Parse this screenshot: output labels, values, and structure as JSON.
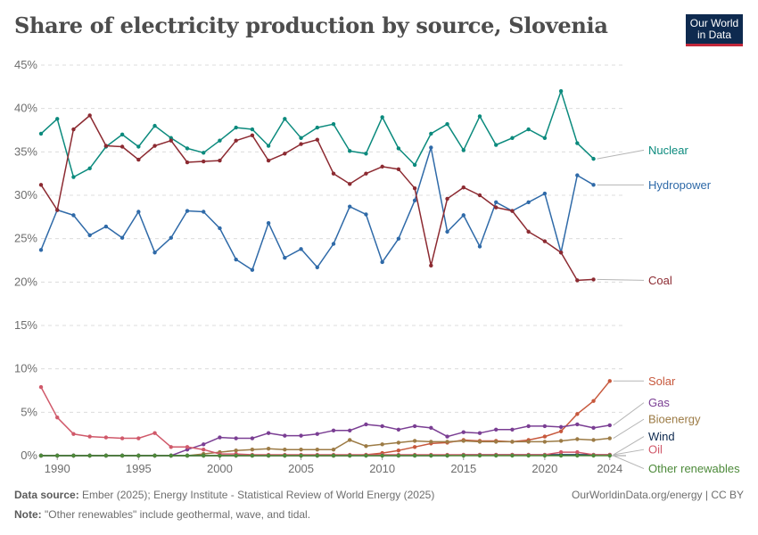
{
  "title": "Share of electricity production by source, Slovenia",
  "logo": {
    "line1": "Our World",
    "line2": "in Data"
  },
  "footer": {
    "source_label": "Data source:",
    "source_text": "Ember (2025); Energy Institute - Statistical Review of World Energy (2025)",
    "note_label": "Note:",
    "note_text": "\"Other renewables\" include geothermal, wave, and tidal.",
    "url": "OurWorldinData.org/energy | CC BY"
  },
  "chart_data": {
    "type": "line",
    "title": "Share of electricity production by source, Slovenia",
    "xlim": [
      1989,
      2025
    ],
    "ylim": [
      0,
      45
    ],
    "y_ticks": [
      0,
      5,
      10,
      15,
      20,
      25,
      30,
      35,
      40,
      45
    ],
    "y_tick_labels": [
      "0%",
      "5%",
      "10%",
      "15%",
      "20%",
      "25%",
      "30%",
      "35%",
      "40%",
      "45%"
    ],
    "x_ticks": [
      1990,
      1995,
      2000,
      2005,
      2010,
      2015,
      2020,
      2024
    ],
    "x_tick_labels": [
      "1990",
      "1995",
      "2000",
      "2005",
      "2010",
      "2015",
      "2020",
      "2024"
    ],
    "grid": "horizontal dashed",
    "legend": "right, labels at line ends",
    "x": [
      1989,
      1990,
      1991,
      1992,
      1993,
      1994,
      1995,
      1996,
      1997,
      1998,
      1999,
      2000,
      2001,
      2002,
      2003,
      2004,
      2005,
      2006,
      2007,
      2008,
      2009,
      2010,
      2011,
      2012,
      2013,
      2014,
      2015,
      2016,
      2017,
      2018,
      2019,
      2020,
      2021,
      2022,
      2023,
      2024
    ],
    "series": [
      {
        "name": "Nuclear",
        "color": "#0b8a7d",
        "label_y": 35.2,
        "values": [
          37.1,
          38.8,
          32.1,
          33.1,
          35.6,
          37.0,
          35.6,
          38.0,
          36.6,
          35.4,
          34.9,
          36.3,
          37.8,
          37.6,
          35.7,
          38.8,
          36.6,
          37.8,
          38.2,
          35.1,
          34.8,
          39.0,
          35.4,
          33.5,
          37.1,
          38.2,
          35.2,
          39.1,
          35.8,
          36.6,
          37.6,
          36.6,
          42.0,
          36.0,
          34.2,
          null
        ]
      },
      {
        "name": "Hydropower",
        "color": "#2f6aa8",
        "label_y": 31.2,
        "values": [
          23.7,
          28.3,
          27.7,
          25.4,
          26.4,
          25.1,
          28.1,
          23.4,
          25.1,
          28.2,
          28.1,
          26.2,
          22.6,
          21.4,
          26.8,
          22.8,
          23.8,
          21.7,
          24.4,
          28.7,
          27.8,
          22.3,
          25.0,
          29.4,
          35.5,
          25.8,
          27.7,
          24.1,
          29.2,
          28.2,
          29.2,
          30.2,
          23.4,
          32.3,
          31.2,
          null
        ]
      },
      {
        "name": "Coal",
        "color": "#8c2a31",
        "label_y": 20.2,
        "values": [
          31.2,
          28.3,
          37.6,
          39.2,
          35.7,
          35.6,
          34.1,
          35.7,
          36.3,
          33.8,
          33.9,
          34.0,
          36.3,
          36.9,
          34.0,
          34.8,
          35.9,
          36.4,
          32.5,
          31.3,
          32.5,
          33.3,
          33.0,
          30.8,
          21.9,
          29.6,
          30.9,
          30.0,
          28.6,
          28.2,
          25.8,
          24.7,
          23.4,
          20.2,
          20.3,
          null
        ]
      },
      {
        "name": "Solar",
        "color": "#c7583c",
        "label_y": 8.6,
        "values": [
          0,
          0,
          0,
          0,
          0,
          0,
          0,
          0,
          0,
          0,
          0,
          0,
          0,
          0,
          0,
          0,
          0,
          0,
          0,
          0,
          0.1,
          0.3,
          0.6,
          1.0,
          1.4,
          1.5,
          1.8,
          1.7,
          1.7,
          1.6,
          1.8,
          2.2,
          2.8,
          4.8,
          6.3,
          8.6
        ]
      },
      {
        "name": "Gas",
        "color": "#7a3e93",
        "label_y": 6.1,
        "values": [
          0,
          0,
          0,
          0,
          0,
          0,
          0,
          0,
          0,
          0.7,
          1.3,
          2.1,
          2.0,
          2.0,
          2.6,
          2.3,
          2.3,
          2.5,
          2.9,
          2.9,
          3.6,
          3.4,
          3.0,
          3.4,
          3.2,
          2.2,
          2.7,
          2.6,
          3.0,
          3.0,
          3.4,
          3.4,
          3.3,
          3.6,
          3.2,
          3.5
        ]
      },
      {
        "name": "Bioenergy",
        "color": "#9c7b45",
        "label_y": 4.2,
        "values": [
          0,
          0,
          0,
          0,
          0,
          0,
          0,
          0,
          0,
          0,
          0.2,
          0.4,
          0.6,
          0.7,
          0.8,
          0.7,
          0.7,
          0.7,
          0.7,
          1.8,
          1.1,
          1.3,
          1.5,
          1.7,
          1.6,
          1.6,
          1.7,
          1.6,
          1.6,
          1.6,
          1.6,
          1.6,
          1.7,
          1.9,
          1.8,
          2.0
        ]
      },
      {
        "name": "Wind",
        "color": "#0e2a4f",
        "label_y": 2.2,
        "values": [
          0,
          0,
          0,
          0,
          0,
          0,
          0,
          0,
          0,
          0,
          0,
          0,
          0,
          0,
          0,
          0,
          0,
          0,
          0,
          0,
          0,
          0,
          0,
          0,
          0,
          0,
          0.1,
          0.1,
          0.1,
          0.1,
          0.1,
          0.1,
          0.1,
          0.1,
          0.1,
          0.1
        ]
      },
      {
        "name": "Oil",
        "color": "#d0596a",
        "label_y": 0.7,
        "values": [
          7.9,
          4.4,
          2.5,
          2.2,
          2.1,
          2.0,
          2.0,
          2.6,
          1.0,
          1.0,
          0.7,
          0.2,
          0.2,
          0.1,
          0.1,
          0.1,
          0.1,
          0.1,
          0.1,
          0.1,
          0.1,
          0.1,
          0.1,
          0.1,
          0.1,
          0.1,
          0.1,
          0.1,
          0.1,
          0.1,
          0.1,
          0.1,
          0.4,
          0.4,
          0.1,
          0.1
        ]
      },
      {
        "name": "Other renewables",
        "color": "#4d8a3a",
        "label_y": -1.5,
        "values": [
          0,
          0,
          0,
          0,
          0,
          0,
          0,
          0,
          0,
          0,
          0,
          0,
          0,
          0,
          0,
          0,
          0,
          0,
          0,
          0,
          0,
          0,
          0,
          0,
          0,
          0,
          0,
          0,
          0,
          0,
          0,
          0,
          0,
          0,
          0,
          0
        ]
      }
    ]
  }
}
